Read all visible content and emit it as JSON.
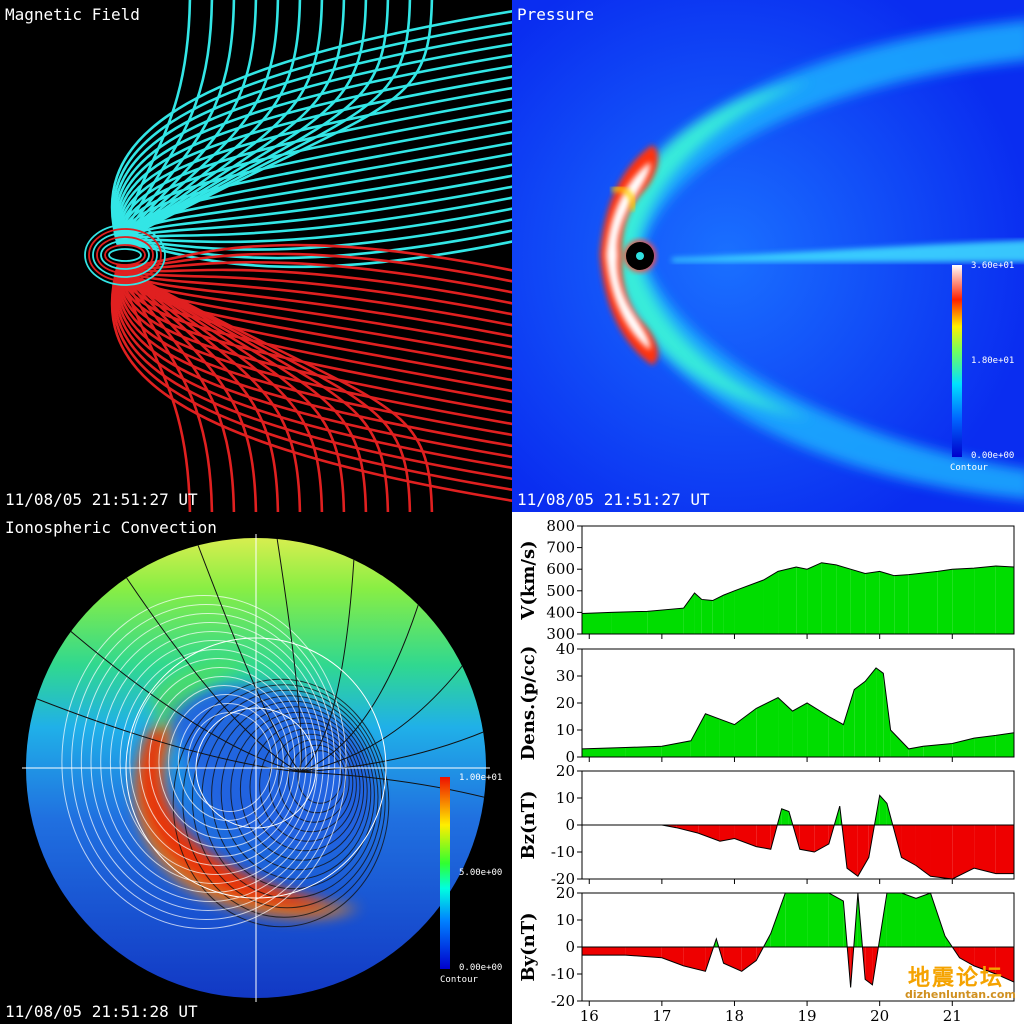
{
  "panels": {
    "magnetic": {
      "title": "Magnetic Field",
      "timestamp": "11/08/05 21:51:27 UT"
    },
    "pressure": {
      "title": "Pressure",
      "timestamp": "11/08/05 21:51:27 UT",
      "colorbar": {
        "max": "3.60e+01",
        "mid": "1.80e+01",
        "min": "0.00e+00",
        "label": "Contour"
      }
    },
    "ionosphere": {
      "title": "Ionospheric Convection",
      "timestamp": "11/08/05 21:51:28 UT",
      "colorbar": {
        "max": "1.00e+01",
        "mid": "5.00e+00",
        "min": "0.00e+00",
        "label": "Contour"
      }
    }
  },
  "watermark": {
    "line1": "地震论坛",
    "line2": "dizhenluntan.com"
  },
  "colors": {
    "fill_positive": "#00dd00",
    "fill_negative": "#ee0000",
    "field_north": "#33e6e6",
    "field_south": "#e02020"
  },
  "chart_data": {
    "type": "area",
    "x_axis": {
      "ticks": [
        16,
        17,
        18,
        19,
        20,
        21
      ],
      "range": [
        15.9,
        21.85
      ]
    },
    "subplots": [
      {
        "id": "v",
        "ylabel": "V(km/s)",
        "ylim": [
          300,
          800
        ],
        "yticks": [
          300,
          400,
          500,
          600,
          700,
          800
        ],
        "baseline": 300,
        "x": [
          15.9,
          16.3,
          16.8,
          17.3,
          17.45,
          17.55,
          17.7,
          17.85,
          18.0,
          18.4,
          18.6,
          18.85,
          19.0,
          19.2,
          19.4,
          19.6,
          19.8,
          20.0,
          20.2,
          20.4,
          20.8,
          21.0,
          21.3,
          21.6,
          21.85
        ],
        "values": [
          395,
          400,
          405,
          420,
          490,
          460,
          455,
          480,
          500,
          550,
          590,
          610,
          600,
          630,
          620,
          600,
          580,
          590,
          570,
          575,
          590,
          600,
          605,
          615,
          610
        ]
      },
      {
        "id": "dens",
        "ylabel": "Dens.(p/cc)",
        "ylim": [
          0,
          40
        ],
        "yticks": [
          0,
          10,
          20,
          30,
          40
        ],
        "baseline": 0,
        "x": [
          15.9,
          16.5,
          17.0,
          17.4,
          17.6,
          17.8,
          18.0,
          18.3,
          18.6,
          18.8,
          19.0,
          19.3,
          19.5,
          19.65,
          19.8,
          19.95,
          20.05,
          20.15,
          20.4,
          20.6,
          21.0,
          21.3,
          21.6,
          21.85
        ],
        "values": [
          3,
          3.5,
          4,
          6,
          16,
          14,
          12,
          18,
          22,
          17,
          20,
          15,
          12,
          25,
          28,
          33,
          31,
          10,
          3,
          4,
          5,
          7,
          8,
          9
        ]
      },
      {
        "id": "bz",
        "ylabel": "Bz(nT)",
        "ylim": [
          -20,
          20
        ],
        "yticks": [
          -20,
          -10,
          0,
          10,
          20
        ],
        "baseline": 0,
        "x": [
          15.9,
          17.0,
          17.2,
          17.5,
          17.8,
          18.0,
          18.3,
          18.5,
          18.65,
          18.75,
          18.9,
          19.1,
          19.3,
          19.45,
          19.55,
          19.7,
          19.85,
          20.0,
          20.1,
          20.3,
          20.5,
          20.7,
          21.0,
          21.3,
          21.6,
          21.85
        ],
        "values": [
          0,
          0,
          -1,
          -3,
          -6,
          -5,
          -8,
          -9,
          6,
          5,
          -9,
          -10,
          -7,
          7,
          -16,
          -19,
          -12,
          11,
          8,
          -12,
          -15,
          -19,
          -20,
          -16,
          -18,
          -18
        ]
      },
      {
        "id": "by",
        "ylabel": "By(nT)",
        "ylim": [
          -20,
          20
        ],
        "yticks": [
          -20,
          -10,
          0,
          10,
          20
        ],
        "baseline": 0,
        "x": [
          15.9,
          16.5,
          17.0,
          17.3,
          17.6,
          17.75,
          17.85,
          18.1,
          18.3,
          18.5,
          18.7,
          19.0,
          19.3,
          19.5,
          19.6,
          19.7,
          19.8,
          19.9,
          20.1,
          20.3,
          20.5,
          20.7,
          20.9,
          21.1,
          21.3,
          21.6,
          21.85
        ],
        "values": [
          -3,
          -3,
          -4,
          -7,
          -9,
          3,
          -6,
          -9,
          -5,
          5,
          20,
          20,
          20,
          17,
          -15,
          20,
          -12,
          -14,
          20,
          20,
          18,
          20,
          4,
          -4,
          -7,
          -10,
          -13
        ]
      }
    ]
  }
}
